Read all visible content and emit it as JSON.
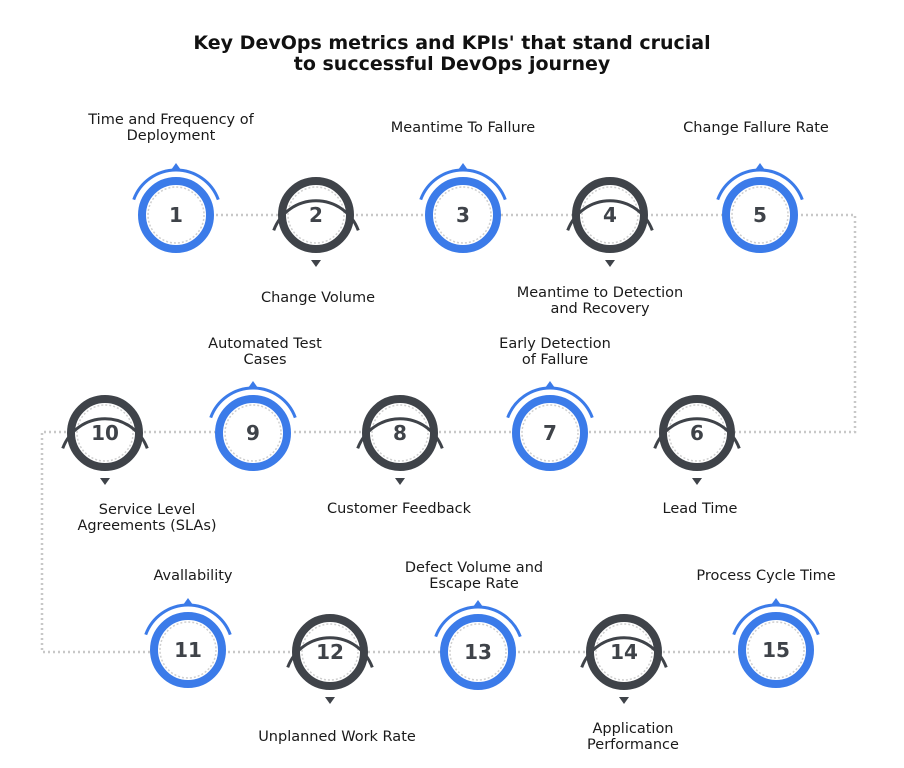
{
  "title": {
    "line1": "Key DevOps metrics and KPIs' that stand crucial",
    "line2": "to successful DevOps journey"
  },
  "colors": {
    "blue": "#3b7be9",
    "dark": "#3f4349",
    "connector": "#c8c8c8",
    "number": "#3f4349"
  },
  "metrics": [
    {
      "number": "1",
      "label": [
        "Time and Frequency of",
        "Deployment"
      ],
      "style": "blue"
    },
    {
      "number": "2",
      "label": [
        "Change Volume"
      ],
      "style": "dark"
    },
    {
      "number": "3",
      "label": [
        "Meantime To Fallure"
      ],
      "style": "blue"
    },
    {
      "number": "4",
      "label": [
        "Meantime to Detection",
        "and Recovery"
      ],
      "style": "dark"
    },
    {
      "number": "5",
      "label": [
        "Change Fallure Rate"
      ],
      "style": "blue"
    },
    {
      "number": "6",
      "label": [
        "Lead Time"
      ],
      "style": "dark"
    },
    {
      "number": "7",
      "label": [
        "Early Detection",
        "of Fallure"
      ],
      "style": "blue"
    },
    {
      "number": "8",
      "label": [
        "Customer Feedback"
      ],
      "style": "dark"
    },
    {
      "number": "9",
      "label": [
        "Automated Test",
        "Cases"
      ],
      "style": "blue"
    },
    {
      "number": "10",
      "label": [
        "Service Level",
        "Agreements (SLAs)"
      ],
      "style": "dark"
    },
    {
      "number": "11",
      "label": [
        "Avallability"
      ],
      "style": "blue"
    },
    {
      "number": "12",
      "label": [
        "Unplanned Work Rate"
      ],
      "style": "dark"
    },
    {
      "number": "13",
      "label": [
        "Defect Volume and",
        "Escape Rate"
      ],
      "style": "blue"
    },
    {
      "number": "14",
      "label": [
        "Application",
        "Performance"
      ],
      "style": "dark"
    },
    {
      "number": "15",
      "label": [
        "Process Cycle Time"
      ],
      "style": "blue"
    }
  ]
}
